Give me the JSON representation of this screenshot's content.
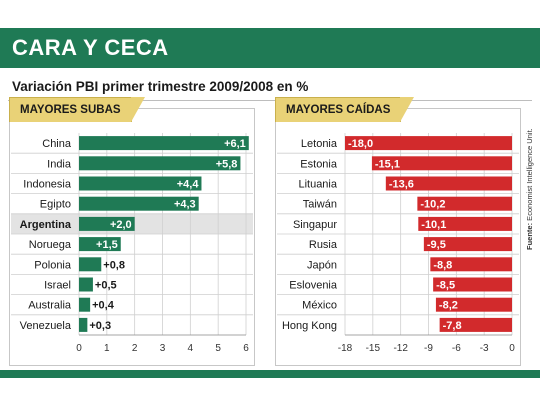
{
  "header": {
    "title": "CARA Y CECA"
  },
  "subtitle": "Variación PBI primer trimestre 2009/2008 en %",
  "source": {
    "label": "Fuente:",
    "text": "Economist Intelligence Unit."
  },
  "colors": {
    "green": "#1f7a55",
    "red": "#d22a2c",
    "highlight_row": "#e3e3e3",
    "tab": "#e9d277"
  },
  "chart_data": [
    {
      "type": "bar",
      "orientation": "horizontal",
      "title": "MAYORES SUBAS",
      "categories": [
        "China",
        "India",
        "Indonesia",
        "Egipto",
        "Argentina",
        "Noruega",
        "Polonia",
        "Israel",
        "Australia",
        "Venezuela"
      ],
      "values": [
        6.1,
        5.8,
        4.4,
        4.3,
        2.0,
        1.5,
        0.8,
        0.5,
        0.4,
        0.3
      ],
      "value_labels": [
        "+6,1",
        "+5,8",
        "+4,4",
        "+4,3",
        "+2,0",
        "+1,5",
        "+0,8",
        "+0,5",
        "+0,4",
        "+0,3"
      ],
      "highlight": "Argentina",
      "xlim": [
        0,
        6
      ],
      "ticks": [
        0,
        1,
        2,
        3,
        4,
        5,
        6
      ],
      "tick_labels": [
        "0",
        "1",
        "2",
        "3",
        "4",
        "5",
        "6"
      ],
      "color": "#1f7a55"
    },
    {
      "type": "bar",
      "orientation": "horizontal",
      "title": "MAYORES CAÍDAS",
      "categories": [
        "Letonia",
        "Estonia",
        "Lituania",
        "Taiwán",
        "Singapur",
        "Rusia",
        "Japón",
        "Eslovenia",
        "México",
        "Hong Kong"
      ],
      "values": [
        -18.0,
        -15.1,
        -13.6,
        -10.2,
        -10.1,
        -9.5,
        -8.8,
        -8.5,
        -8.2,
        -7.8
      ],
      "value_labels": [
        "-18,0",
        "-15,1",
        "-13,6",
        "-10,2",
        "-10,1",
        "-9,5",
        "-8,8",
        "-8,5",
        "-8,2",
        "-7,8"
      ],
      "xlim": [
        -18,
        0
      ],
      "ticks": [
        -18,
        -15,
        -12,
        -9,
        -6,
        -3,
        0
      ],
      "tick_labels": [
        "-18",
        "-15",
        "-12",
        "-9",
        "-6",
        "-3",
        "0"
      ],
      "color": "#d22a2c"
    }
  ]
}
